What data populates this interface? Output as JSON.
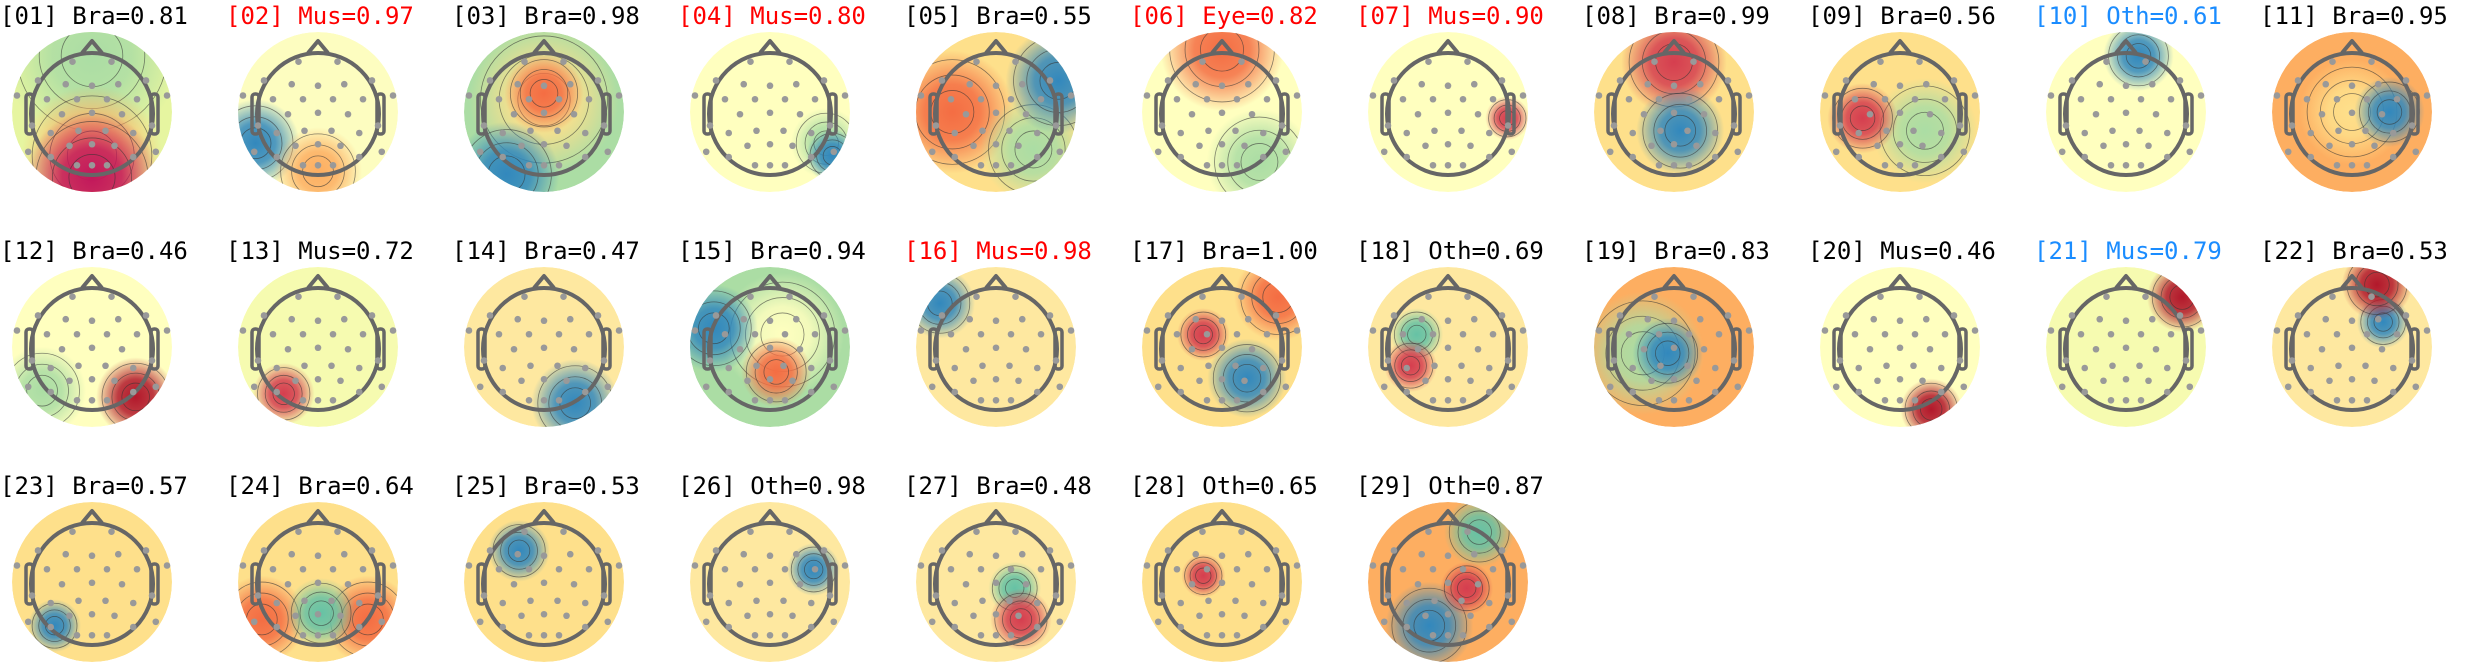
{
  "colors": {
    "default": "#000000",
    "flag_red": "#ff0000",
    "flag_blue": "#1a8cff"
  },
  "components": [
    {
      "label": "[01] Bra=0.81",
      "color": "#000000"
    },
    {
      "label": "[02] Mus=0.97",
      "color": "#ff0000"
    },
    {
      "label": "[03] Bra=0.98",
      "color": "#000000"
    },
    {
      "label": "[04] Mus=0.80",
      "color": "#ff0000"
    },
    {
      "label": "[05] Bra=0.55",
      "color": "#000000"
    },
    {
      "label": "[06] Eye=0.82",
      "color": "#ff0000"
    },
    {
      "label": "[07] Mus=0.90",
      "color": "#ff0000"
    },
    {
      "label": "[08] Bra=0.99",
      "color": "#000000"
    },
    {
      "label": "[09] Bra=0.56",
      "color": "#000000"
    },
    {
      "label": "[10] Oth=0.61",
      "color": "#1a8cff"
    },
    {
      "label": "[11] Bra=0.95",
      "color": "#000000"
    },
    {
      "label": "[12] Bra=0.46",
      "color": "#000000"
    },
    {
      "label": "[13] Mus=0.72",
      "color": "#000000"
    },
    {
      "label": "[14] Bra=0.47",
      "color": "#000000"
    },
    {
      "label": "[15] Bra=0.94",
      "color": "#000000"
    },
    {
      "label": "[16] Mus=0.98",
      "color": "#ff0000"
    },
    {
      "label": "[17] Bra=1.00",
      "color": "#000000"
    },
    {
      "label": "[18] Oth=0.69",
      "color": "#000000"
    },
    {
      "label": "[19] Bra=0.83",
      "color": "#000000"
    },
    {
      "label": "[20] Mus=0.46",
      "color": "#000000"
    },
    {
      "label": "[21] Mus=0.79",
      "color": "#1a8cff"
    },
    {
      "label": "[22] Bra=0.53",
      "color": "#000000"
    },
    {
      "label": "[23] Bra=0.57",
      "color": "#000000"
    },
    {
      "label": "[24] Bra=0.64",
      "color": "#000000"
    },
    {
      "label": "[25] Bra=0.53",
      "color": "#000000"
    },
    {
      "label": "[26] Oth=0.98",
      "color": "#000000"
    },
    {
      "label": "[27] Bra=0.48",
      "color": "#000000"
    },
    {
      "label": "[28] Oth=0.65",
      "color": "#000000"
    },
    {
      "label": "[29] Oth=0.87",
      "color": "#000000"
    }
  ]
}
